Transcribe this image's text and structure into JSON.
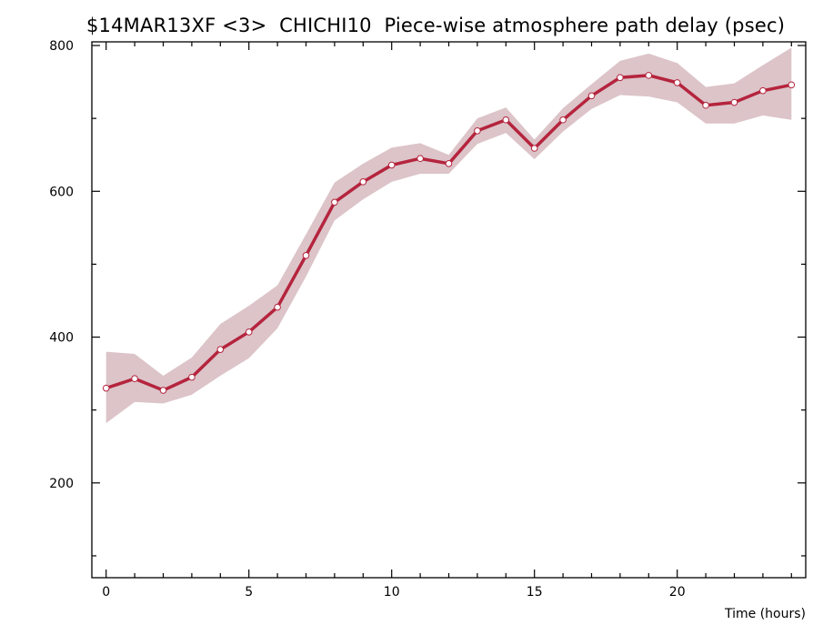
{
  "chart_data": {
    "type": "line",
    "title": "$14MAR13XF <3>  CHICHI10  Piece-wise atmosphere path delay (psec)",
    "xlabel": "Time (hours)",
    "ylabel": "",
    "xlim": [
      -0.5,
      24.5
    ],
    "ylim": [
      70,
      805
    ],
    "x_ticks": [
      0,
      5,
      10,
      15,
      20
    ],
    "y_ticks": [
      200,
      400,
      600,
      800
    ],
    "x_minor_ticks": [
      0,
      1,
      2,
      3,
      4,
      5,
      6,
      7,
      8,
      9,
      10,
      11,
      12,
      13,
      14,
      15,
      16,
      17,
      18,
      19,
      20,
      21,
      22,
      23,
      24
    ],
    "y_minor_ticks": [
      100,
      300,
      500,
      700
    ],
    "grid": false,
    "x": [
      0,
      1,
      2,
      3,
      4,
      5,
      6,
      7,
      8,
      9,
      10,
      11,
      12,
      13,
      14,
      15,
      16,
      17,
      18,
      19,
      20,
      21,
      22,
      23,
      24
    ],
    "series": [
      {
        "values": [
          330,
          343,
          327,
          345,
          383,
          407,
          441,
          512,
          585,
          613,
          636,
          645,
          638,
          683,
          698,
          659,
          698,
          731,
          756,
          759,
          749,
          718,
          722,
          738,
          746
        ],
        "upper": [
          380,
          377,
          347,
          372,
          418,
          443,
          471,
          541,
          612,
          638,
          660,
          666,
          650,
          700,
          715,
          671,
          714,
          747,
          779,
          789,
          776,
          743,
          748,
          773,
          797
        ],
        "lower": [
          282,
          311,
          309,
          321,
          347,
          371,
          412,
          483,
          560,
          589,
          613,
          624,
          624,
          665,
          680,
          644,
          682,
          713,
          732,
          730,
          722,
          693,
          693,
          704,
          698
        ]
      }
    ],
    "colors": {
      "line": "#b5243d",
      "band": "#dcc4c9",
      "marker_fill": "#ffffff",
      "marker_stroke": "#b5243d",
      "axis": "#000000"
    }
  }
}
